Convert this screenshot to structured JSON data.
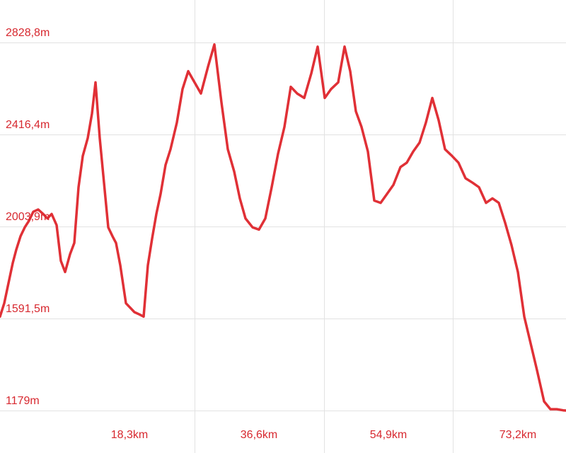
{
  "colors": {
    "line": "#e03036",
    "label": "#d7282f",
    "grid": "#e2e2e2",
    "background": "#ffffff"
  },
  "chart_data": {
    "type": "line",
    "title": "",
    "xlabel": "",
    "ylabel": "",
    "grid": true,
    "xlim": [
      0,
      80.0
    ],
    "ylim": [
      1179,
      2828.8
    ],
    "y_ticks": [
      {
        "value": 2828.8,
        "label": "2828,8m"
      },
      {
        "value": 2416.4,
        "label": "2416,4m"
      },
      {
        "value": 2003.9,
        "label": "2003,9m"
      },
      {
        "value": 1591.5,
        "label": "1591,5m"
      },
      {
        "value": 1179,
        "label": "1179m"
      }
    ],
    "x_ticks": [
      {
        "value": 18.3,
        "label": "18,3km"
      },
      {
        "value": 36.6,
        "label": "36,6km"
      },
      {
        "value": 54.9,
        "label": "54,9km"
      },
      {
        "value": 73.2,
        "label": "73,2km"
      }
    ],
    "series": [
      {
        "x": [
          0,
          0.6,
          1.2,
          1.8,
          2.3,
          2.9,
          3.5,
          4.1,
          4.7,
          5.4,
          6.1,
          6.7,
          7.3,
          8.0,
          8.6,
          9.2,
          9.9,
          10.5,
          11.1,
          11.7,
          12.4,
          13.0,
          13.5,
          14.1,
          14.7,
          15.3,
          15.9,
          16.4,
          17.0,
          17.8,
          18.4,
          19.0,
          19.7,
          20.3,
          20.9,
          21.5,
          22.1,
          22.7,
          23.4,
          24.1,
          25.0,
          25.8,
          26.6,
          27.5,
          28.4,
          29.4,
          30.3,
          31.3,
          32.2,
          33.1,
          33.9,
          34.7,
          35.7,
          36.6,
          37.5,
          38.4,
          39.3,
          40.2,
          41.1,
          42.0,
          43.0,
          44.0,
          44.9,
          45.9,
          46.8,
          47.8,
          48.7,
          49.5,
          50.3,
          51.1,
          52.0,
          52.9,
          53.8,
          54.7,
          55.6,
          56.6,
          57.5,
          58.4,
          59.3,
          60.2,
          61.1,
          62.0,
          62.9,
          63.9,
          64.8,
          65.8,
          66.8,
          67.7,
          68.7,
          69.6,
          70.5,
          71.4,
          72.3,
          73.2,
          74.1,
          75.0,
          75.9,
          76.9,
          77.8,
          78.7,
          79.6,
          80.0
        ],
        "values": [
          1600,
          1660,
          1750,
          1840,
          1900,
          1960,
          2000,
          2030,
          2070,
          2080,
          2060,
          2040,
          2060,
          2010,
          1850,
          1800,
          1880,
          1930,
          2180,
          2320,
          2400,
          2510,
          2650,
          2400,
          2200,
          2000,
          1960,
          1930,
          1830,
          1660,
          1640,
          1620,
          1610,
          1600,
          1830,
          1950,
          2060,
          2150,
          2280,
          2350,
          2470,
          2620,
          2700,
          2650,
          2600,
          2720,
          2820,
          2560,
          2350,
          2250,
          2130,
          2040,
          2000,
          1990,
          2040,
          2180,
          2330,
          2450,
          2630,
          2600,
          2580,
          2690,
          2810,
          2580,
          2620,
          2650,
          2810,
          2700,
          2520,
          2450,
          2340,
          2120,
          2110,
          2150,
          2190,
          2270,
          2290,
          2340,
          2380,
          2470,
          2580,
          2480,
          2350,
          2320,
          2290,
          2220,
          2200,
          2180,
          2110,
          2130,
          2110,
          2020,
          1920,
          1800,
          1600,
          1480,
          1360,
          1220,
          1185,
          1185,
          1180,
          1179
        ]
      }
    ]
  }
}
